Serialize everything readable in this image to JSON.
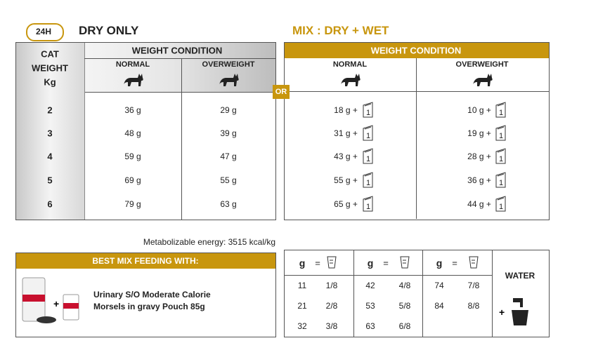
{
  "dry_only": {
    "badge": "24H",
    "title": "DRY ONLY",
    "cat_weight": [
      "CAT",
      "WEIGHT",
      "Kg"
    ],
    "group": "WEIGHT CONDITION",
    "columns": [
      "NORMAL",
      "OVERWEIGHT"
    ],
    "weights": [
      "2",
      "3",
      "4",
      "5",
      "6"
    ],
    "normal": [
      "36 g",
      "48 g",
      "59 g",
      "69 g",
      "79 g"
    ],
    "overweight": [
      "29 g",
      "39 g",
      "47 g",
      "55 g",
      "63 g"
    ]
  },
  "or": "OR",
  "mix": {
    "title": "MIX : DRY + WET",
    "group": "WEIGHT CONDITION",
    "columns": [
      "NORMAL",
      "OVERWEIGHT"
    ],
    "normal": [
      "18 g +",
      "31 g +",
      "43 g +",
      "55 g +",
      "65 g +"
    ],
    "overweight": [
      "10 g +",
      "19 g +",
      "28 g +",
      "36 g +",
      "44 g +"
    ],
    "pouch": "1"
  },
  "energy": "Metabolizable energy: 3515 kcal/kg",
  "best_mix": {
    "title": "BEST MIX FEEDING WITH:",
    "product": [
      "Urinary S/O Moderate Calorie",
      "Morsels in gravy Pouch 85g"
    ]
  },
  "conversion": {
    "unit": "g",
    "equals": "=",
    "water": "WATER",
    "groups": [
      {
        "grams": [
          "11",
          "21",
          "32"
        ],
        "cups": [
          "1/8",
          "2/8",
          "3/8"
        ]
      },
      {
        "grams": [
          "42",
          "53",
          "63"
        ],
        "cups": [
          "4/8",
          "5/8",
          "6/8"
        ]
      },
      {
        "grams": [
          "74",
          "84"
        ],
        "cups": [
          "7/8",
          "8/8"
        ]
      }
    ]
  }
}
